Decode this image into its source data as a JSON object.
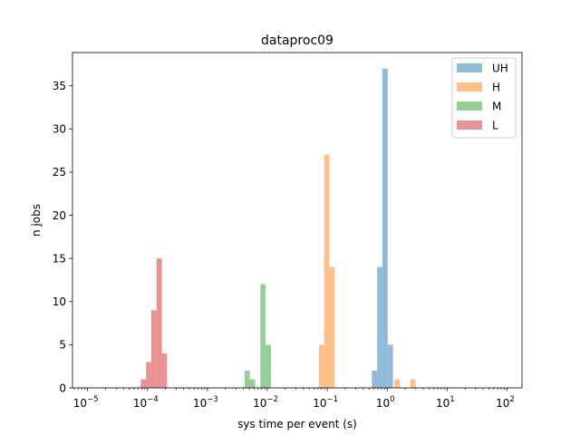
{
  "chart_data": {
    "type": "bar",
    "title": "dataproc09",
    "xlabel": "sys time per event (s)",
    "ylabel": "n jobs",
    "x_scale": "log",
    "xlim": [
      5.6e-06,
      178
    ],
    "ylim": [
      0,
      38.85
    ],
    "x_ticks": [
      {
        "value": 1e-05,
        "base": "10",
        "exp": "−5"
      },
      {
        "value": 0.0001,
        "base": "10",
        "exp": "−4"
      },
      {
        "value": 0.001,
        "base": "10",
        "exp": "−3"
      },
      {
        "value": 0.01,
        "base": "10",
        "exp": "−2"
      },
      {
        "value": 0.1,
        "base": "10",
        "exp": "−1"
      },
      {
        "value": 1,
        "base": "10",
        "exp": "0"
      },
      {
        "value": 10,
        "base": "10",
        "exp": "1"
      },
      {
        "value": 100,
        "base": "10",
        "exp": "2"
      }
    ],
    "y_ticks": [
      0,
      5,
      10,
      15,
      20,
      25,
      30,
      35
    ],
    "grid": false,
    "legend_position": "top-right",
    "bar_opacity": 0.5,
    "series": [
      {
        "name": "UH",
        "color": "#1f77b4",
        "bins": [
          {
            "x0": 0.555,
            "x1": 0.68,
            "value": 2
          },
          {
            "x0": 0.68,
            "x1": 0.83,
            "value": 14
          },
          {
            "x0": 0.83,
            "x1": 1.02,
            "value": 37
          },
          {
            "x0": 1.02,
            "x1": 1.25,
            "value": 5
          }
        ]
      },
      {
        "name": "H",
        "color": "#ff7f0e",
        "bins": [
          {
            "x0": 0.0725,
            "x1": 0.0888,
            "value": 5
          },
          {
            "x0": 0.0888,
            "x1": 0.1087,
            "value": 27
          },
          {
            "x0": 0.1087,
            "x1": 0.133,
            "value": 14
          },
          {
            "x0": 1.33,
            "x1": 1.62,
            "value": 1
          },
          {
            "x0": 2.43,
            "x1": 2.97,
            "value": 1
          }
        ]
      },
      {
        "name": "M",
        "color": "#2ca02c",
        "bins": [
          {
            "x0": 0.00417,
            "x1": 0.0051,
            "value": 2
          },
          {
            "x0": 0.0051,
            "x1": 0.00625,
            "value": 1
          },
          {
            "x0": 0.00765,
            "x1": 0.00936,
            "value": 12
          },
          {
            "x0": 0.00936,
            "x1": 0.01146,
            "value": 5
          }
        ]
      },
      {
        "name": "L",
        "color": "#d62728",
        "bins": [
          {
            "x0": 7.72e-05,
            "x1": 9.45e-05,
            "value": 1
          },
          {
            "x0": 9.45e-05,
            "x1": 0.0001157,
            "value": 3
          },
          {
            "x0": 0.0001157,
            "x1": 0.0001417,
            "value": 9
          },
          {
            "x0": 0.0001417,
            "x1": 0.0001734,
            "value": 15
          },
          {
            "x0": 0.0001734,
            "x1": 0.0002123,
            "value": 4
          }
        ]
      }
    ]
  }
}
